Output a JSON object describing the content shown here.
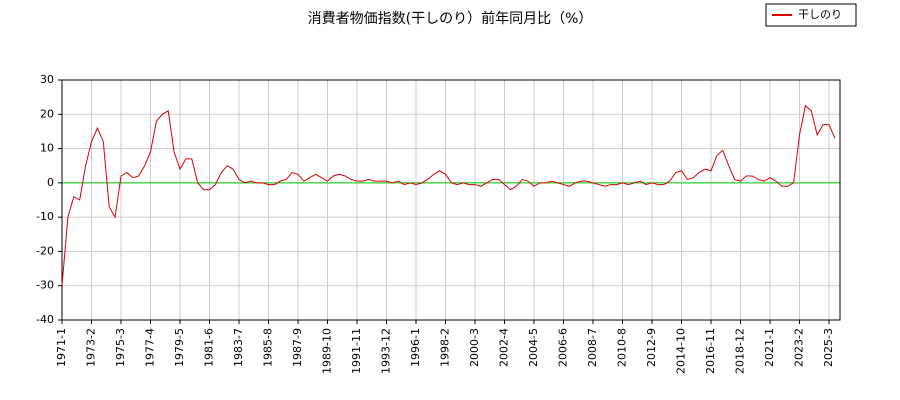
{
  "chart_data": {
    "type": "line",
    "title": "消費者物価指数(干しのり）前年同月比（%）",
    "categories": [
      "1971-1",
      null,
      null,
      null,
      null,
      "1973-2",
      null,
      null,
      null,
      null,
      "1975-3",
      null,
      null,
      null,
      null,
      "1977-4",
      null,
      null,
      null,
      null,
      "1979-5",
      null,
      null,
      null,
      null,
      "1981-6",
      null,
      null,
      null,
      null,
      "1983-7",
      null,
      null,
      null,
      null,
      "1985-8",
      null,
      null,
      null,
      null,
      "1987-9",
      null,
      null,
      null,
      null,
      "1989-10",
      null,
      null,
      null,
      null,
      "1991-11",
      null,
      null,
      null,
      null,
      "1993-12",
      null,
      null,
      null,
      null,
      "1996-1",
      null,
      null,
      null,
      null,
      "1998-2",
      null,
      null,
      null,
      null,
      "2000-3",
      null,
      null,
      null,
      null,
      "2002-4",
      null,
      null,
      null,
      null,
      "2004-5",
      null,
      null,
      null,
      null,
      "2006-6",
      null,
      null,
      null,
      null,
      "2008-7",
      null,
      null,
      null,
      null,
      "2010-8",
      null,
      null,
      null,
      null,
      "2012-9",
      null,
      null,
      null,
      null,
      "2014-10",
      null,
      null,
      null,
      null,
      "2016-11",
      null,
      null,
      null,
      null,
      "2018-12",
      null,
      null,
      null,
      null,
      "2021-1",
      null,
      null,
      null,
      null,
      "2023-2",
      null,
      null,
      null,
      null,
      "2025-3",
      null
    ],
    "series": [
      {
        "name": "干しのり",
        "color": "#dd0000",
        "values": [
          -30,
          -10,
          -4,
          -5,
          5,
          12,
          16,
          12,
          -7,
          -10,
          2,
          3,
          1.5,
          2,
          5,
          9,
          18,
          20,
          21,
          9,
          4,
          7,
          7,
          0,
          -2,
          -2,
          -0.5,
          3,
          5,
          4,
          1,
          0,
          0.5,
          0,
          0,
          -0.5,
          -0.5,
          0.5,
          1,
          3,
          2.5,
          0.5,
          1.5,
          2.5,
          1.5,
          0.5,
          2,
          2.5,
          2,
          1,
          0.5,
          0.5,
          1,
          0.5,
          0.5,
          0.5,
          0,
          0.5,
          -0.5,
          0,
          -0.5,
          0,
          1,
          2.5,
          3.5,
          2.5,
          0,
          -0.5,
          0,
          -0.5,
          -0.5,
          -1,
          0,
          1,
          1,
          -0.5,
          -2,
          -1,
          1,
          0.5,
          -1,
          0,
          0,
          0.5,
          0,
          -0.5,
          -1,
          0,
          0.5,
          0.5,
          0,
          -0.5,
          -1,
          -0.5,
          -0.5,
          0,
          -0.5,
          0,
          0.5,
          -0.5,
          0,
          -0.5,
          -0.5,
          0.5,
          3,
          3.5,
          1,
          1.5,
          3,
          4,
          3.5,
          8,
          9.5,
          5,
          1,
          0.5,
          2,
          2,
          1,
          0.5,
          1.5,
          0.5,
          -1,
          -1,
          0,
          14,
          22.5,
          21,
          14,
          17,
          17,
          13
        ]
      }
    ],
    "ylim": [
      -40,
      30
    ],
    "yticks": [
      -40,
      -30,
      -20,
      -10,
      0,
      10,
      20,
      30
    ],
    "grid": true,
    "hline": {
      "value": 0,
      "color": "#00cc00"
    },
    "legend": "top-right"
  }
}
